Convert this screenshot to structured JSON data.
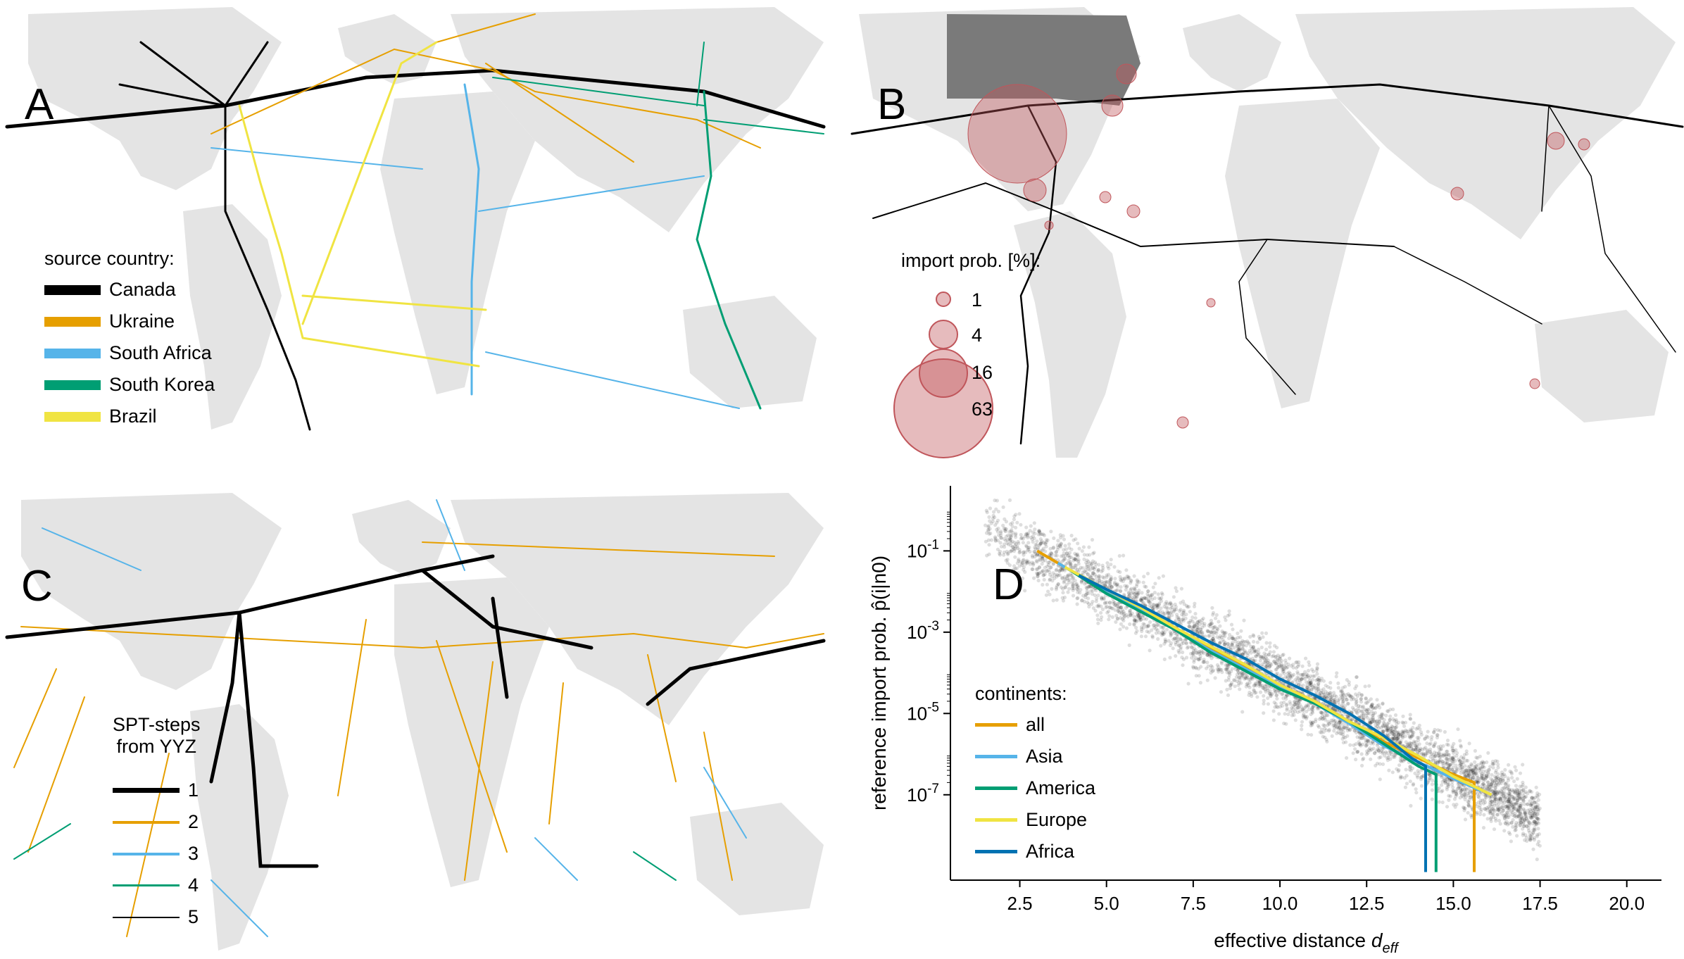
{
  "panels": {
    "A": {
      "letter": "A",
      "legend_title": "source country:",
      "items": [
        {
          "label": "Canada",
          "color": "#000000"
        },
        {
          "label": "Ukraine",
          "color": "#E69F00"
        },
        {
          "label": "South Africa",
          "color": "#56B4E9"
        },
        {
          "label": "South Korea",
          "color": "#009E73"
        },
        {
          "label": "Brazil",
          "color": "#F0E442"
        }
      ]
    },
    "B": {
      "letter": "B",
      "legend_title": "import prob. [%]:",
      "sizes": [
        "1",
        "4",
        "16",
        "63"
      ],
      "bubble_color": "#C0565B"
    },
    "C": {
      "letter": "C",
      "legend_title_1": "SPT-steps",
      "legend_title_2": "from YYZ",
      "items": [
        {
          "label": "1",
          "color": "#000000"
        },
        {
          "label": "2",
          "color": "#E69F00"
        },
        {
          "label": "3",
          "color": "#56B4E9"
        },
        {
          "label": "4",
          "color": "#009E73"
        },
        {
          "label": "5",
          "color": "#000000"
        }
      ]
    },
    "D": {
      "letter": "D",
      "legend_title": "continents:"
    }
  },
  "chart_data": {
    "type": "line",
    "xlabel": "effective distance d_eff",
    "ylabel": "reference import prob. p̂(i|n0)",
    "xlim": [
      0.5,
      21
    ],
    "ylim_log10": [
      -9.1,
      0.6
    ],
    "x_ticks": [
      "2.5",
      "5.0",
      "7.5",
      "10.0",
      "12.5",
      "15.0",
      "17.5",
      "20.0"
    ],
    "x_tick_values": [
      2.5,
      5.0,
      7.5,
      10.0,
      12.5,
      15.0,
      17.5,
      20.0
    ],
    "y_ticks": [
      "10^-1",
      "10^-3",
      "10^-5",
      "10^-7"
    ],
    "y_tick_exponents": [
      -1,
      -3,
      -5,
      -7
    ],
    "scatter_background": "black points, alpha ~0.15",
    "series": [
      {
        "name": "all",
        "color": "#E69F00",
        "x": [
          3.0,
          4,
          5,
          6,
          7,
          8,
          9,
          10,
          11,
          12,
          13,
          14,
          15,
          15.6,
          15.6
        ],
        "y_log10": [
          -1.0,
          -1.5,
          -2.0,
          -2.45,
          -2.9,
          -3.4,
          -3.85,
          -4.3,
          -4.7,
          -5.2,
          -5.7,
          -6.1,
          -6.5,
          -6.7,
          -8.9
        ]
      },
      {
        "name": "Asia",
        "color": "#56B4E9",
        "x": [
          3.6,
          5,
          6,
          7,
          8,
          9,
          10,
          11,
          12,
          13,
          14,
          15,
          15.8
        ],
        "y_log10": [
          -1.3,
          -2.0,
          -2.45,
          -2.95,
          -3.45,
          -3.9,
          -4.35,
          -4.75,
          -5.25,
          -5.8,
          -6.2,
          -6.6,
          -6.9
        ]
      },
      {
        "name": "America",
        "color": "#009E73",
        "x": [
          4,
          5,
          6,
          7,
          8,
          9,
          10,
          11,
          12,
          13,
          14,
          14.5,
          14.5
        ],
        "y_log10": [
          -1.5,
          -2.05,
          -2.5,
          -2.95,
          -3.5,
          -3.95,
          -4.4,
          -4.75,
          -5.2,
          -5.75,
          -6.3,
          -6.5,
          -8.9
        ]
      },
      {
        "name": "Europe",
        "color": "#F0E442",
        "x": [
          3.8,
          5,
          6,
          7,
          8,
          9,
          10,
          11,
          12,
          13,
          14,
          15,
          16.1
        ],
        "y_log10": [
          -1.4,
          -1.95,
          -2.4,
          -2.9,
          -3.35,
          -3.8,
          -4.3,
          -4.7,
          -5.2,
          -5.6,
          -6.05,
          -6.55,
          -7.0
        ]
      },
      {
        "name": "Africa",
        "color": "#0072B2",
        "x": [
          4.2,
          5,
          6,
          7,
          8,
          9,
          10,
          11,
          12,
          13,
          13.8,
          14.2,
          14.2
        ],
        "y_log10": [
          -1.6,
          -1.95,
          -2.35,
          -2.8,
          -3.25,
          -3.65,
          -4.15,
          -4.55,
          -5.0,
          -5.55,
          -6.1,
          -6.3,
          -8.9
        ]
      }
    ]
  }
}
